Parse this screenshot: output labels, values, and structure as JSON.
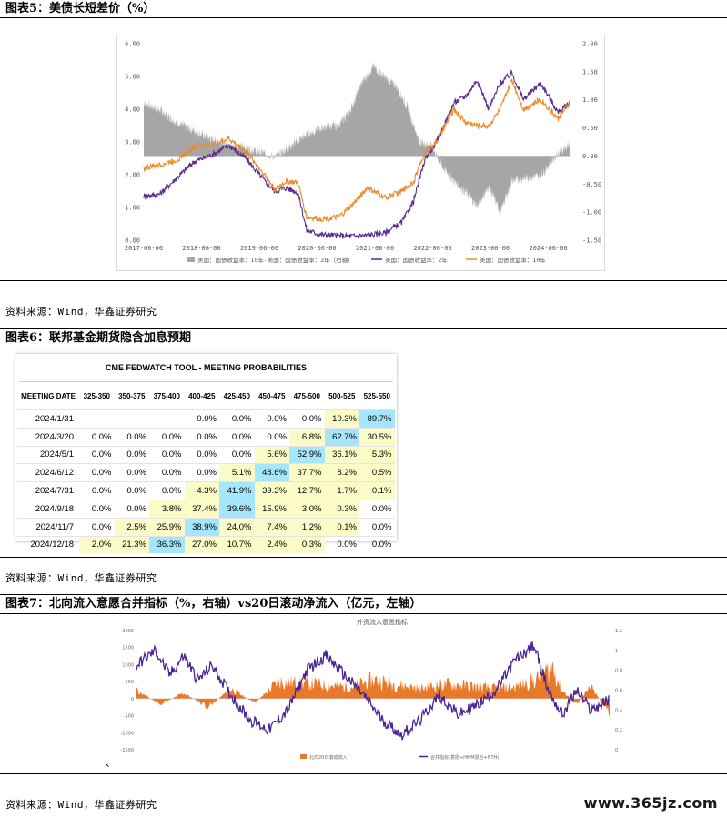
{
  "fig5": {
    "title": "图表5：美债长短差价（%）",
    "source": "资料来源：Wind，华鑫证券研究",
    "chart_data": {
      "type": "line",
      "x_ticks": [
        "2017-06-06",
        "2018-06-06",
        "2019-06-06",
        "2020-06-06",
        "2021-06-06",
        "2022-06-06",
        "2023-06-06",
        "2024-06-06"
      ],
      "left_ticks": [
        "0.00",
        "1.00",
        "2.00",
        "3.00",
        "4.00",
        "5.00",
        "6.00"
      ],
      "right_ticks": [
        "-1.50",
        "-1.00",
        "-0.50",
        "0.00",
        "0.50",
        "1.00",
        "1.50",
        "2.00"
      ],
      "ylim_left": [
        0,
        6
      ],
      "ylim_right": [
        -1.5,
        2.0
      ],
      "series": [
        {
          "name": "美国：国债收益率：10年-美国：国债收益率：2年（右轴）",
          "type": "area",
          "axis": "right",
          "color": "#a6a6a6",
          "x": [
            2017.43,
            2017.7,
            2018.0,
            2018.3,
            2018.6,
            2018.9,
            2019.2,
            2019.5,
            2019.7,
            2020.0,
            2020.2,
            2020.5,
            2020.8,
            2021.0,
            2021.2,
            2021.4,
            2021.6,
            2021.8,
            2022.0,
            2022.2,
            2022.4,
            2022.6,
            2022.8,
            2023.0,
            2023.2,
            2023.4,
            2023.6,
            2023.8,
            2024.0,
            2024.3,
            2024.6,
            2024.8
          ],
          "values": [
            0.95,
            0.82,
            0.6,
            0.45,
            0.3,
            0.2,
            0.15,
            0.05,
            -0.02,
            0.2,
            0.35,
            0.5,
            0.55,
            0.8,
            1.3,
            1.6,
            1.4,
            1.25,
            0.85,
            0.25,
            0.2,
            -0.2,
            -0.45,
            -0.65,
            -0.9,
            -0.55,
            -1.0,
            -0.45,
            -0.4,
            -0.35,
            0.05,
            0.2
          ]
        },
        {
          "name": "美国：国债收益率：2年",
          "type": "line",
          "axis": "left",
          "color": "#5b2c8e",
          "x": [
            2017.43,
            2017.7,
            2018.0,
            2018.3,
            2018.6,
            2018.9,
            2019.2,
            2019.5,
            2019.7,
            2019.9,
            2020.1,
            2020.25,
            2020.5,
            2020.8,
            2021.0,
            2021.3,
            2021.6,
            2021.9,
            2022.1,
            2022.3,
            2022.5,
            2022.8,
            2023.0,
            2023.2,
            2023.4,
            2023.6,
            2023.8,
            2024.0,
            2024.3,
            2024.6,
            2024.8
          ],
          "values": [
            1.35,
            1.4,
            1.9,
            2.4,
            2.6,
            2.9,
            2.5,
            1.85,
            1.5,
            1.6,
            1.45,
            0.3,
            0.17,
            0.14,
            0.12,
            0.15,
            0.22,
            0.55,
            1.2,
            2.5,
            3.0,
            4.2,
            4.4,
            4.9,
            4.0,
            4.8,
            5.1,
            4.3,
            4.8,
            3.9,
            4.2
          ]
        },
        {
          "name": "美国：国债收益率：10年",
          "type": "line",
          "axis": "left",
          "color": "#e88c2f",
          "x": [
            2017.43,
            2017.7,
            2018.0,
            2018.3,
            2018.6,
            2018.9,
            2019.2,
            2019.5,
            2019.7,
            2019.9,
            2020.1,
            2020.25,
            2020.5,
            2020.8,
            2021.0,
            2021.3,
            2021.6,
            2021.9,
            2022.1,
            2022.3,
            2022.5,
            2022.8,
            2023.0,
            2023.2,
            2023.4,
            2023.6,
            2023.8,
            2024.0,
            2024.3,
            2024.6,
            2024.8
          ],
          "values": [
            2.2,
            2.3,
            2.45,
            2.85,
            2.9,
            3.1,
            2.7,
            2.05,
            1.55,
            1.8,
            1.75,
            0.7,
            0.65,
            0.7,
            1.0,
            1.6,
            1.3,
            1.5,
            1.8,
            2.7,
            3.0,
            4.0,
            3.6,
            3.5,
            3.5,
            4.0,
            4.9,
            4.0,
            4.3,
            3.7,
            4.2
          ]
        }
      ]
    }
  },
  "fig6": {
    "title": "图表6：联邦基金期货隐含加息预期",
    "source": "资料来源：Wind，华鑫证券研究",
    "table_title": "CME FEDWATCH TOOL - MEETING PROBABILITIES",
    "headers": [
      "MEETING DATE",
      "325-350",
      "350-375",
      "375-400",
      "400-425",
      "425-450",
      "450-475",
      "475-500",
      "500-525",
      "525-550"
    ],
    "rows": [
      [
        "2024/1/31",
        "",
        "",
        "",
        "0.0%",
        "0.0%",
        "0.0%",
        "0.0%",
        "10.3%",
        "89.7%"
      ],
      [
        "2024/3/20",
        "0.0%",
        "0.0%",
        "0.0%",
        "0.0%",
        "0.0%",
        "0.0%",
        "6.8%",
        "62.7%",
        "30.5%"
      ],
      [
        "2024/5/1",
        "0.0%",
        "0.0%",
        "0.0%",
        "0.0%",
        "0.0%",
        "5.6%",
        "52.9%",
        "36.1%",
        "5.3%"
      ],
      [
        "2024/6/12",
        "0.0%",
        "0.0%",
        "0.0%",
        "0.0%",
        "5.1%",
        "48.6%",
        "37.7%",
        "8.2%",
        "0.5%"
      ],
      [
        "2024/7/31",
        "0.0%",
        "0.0%",
        "0.0%",
        "4.3%",
        "41.9%",
        "39.3%",
        "12.7%",
        "1.7%",
        "0.1%"
      ],
      [
        "2024/9/18",
        "0.0%",
        "0.0%",
        "3.8%",
        "37.4%",
        "39.6%",
        "15.9%",
        "3.0%",
        "0.3%",
        "0.0%"
      ],
      [
        "2024/11/7",
        "0.0%",
        "2.5%",
        "25.9%",
        "38.9%",
        "24.0%",
        "7.4%",
        "1.2%",
        "0.1%",
        "0.0%"
      ],
      [
        "2024/12/18",
        "2.0%",
        "21.3%",
        "36.3%",
        "27.0%",
        "10.7%",
        "2.4%",
        "0.3%",
        "0.0%",
        "0.0%"
      ]
    ],
    "colors": {
      "highlight": "#a6e6fb",
      "nonzero": "#fbfbc8"
    }
  },
  "fig7": {
    "title": "图表7：北向流入意愿合并指标（%，右轴）vs20日滚动净流入（亿元，左轴）",
    "source": "资料来源：Wind，华鑫证券研究",
    "chart_title": "外资流入意愿指标",
    "stray_mark": "、",
    "chart_data": {
      "type": "area",
      "left_ticks": [
        "2000",
        "1500",
        "1000",
        "500",
        "0",
        "-500",
        "-1000",
        "-1500"
      ],
      "right_ticks": [
        "1.2",
        "1",
        "0.8",
        "0.6",
        "0.4",
        "0.2",
        "0"
      ],
      "ylim_left": [
        -1500,
        2000
      ],
      "ylim_right": [
        0,
        1.2
      ],
      "legend": [
        "北向20日滚动流入",
        "合并指标(意愿+HMM混合+NTH)"
      ],
      "colors": {
        "flow": "#e8782a",
        "index": "#4b2596"
      }
    }
  },
  "watermark": "www.365jz.com"
}
